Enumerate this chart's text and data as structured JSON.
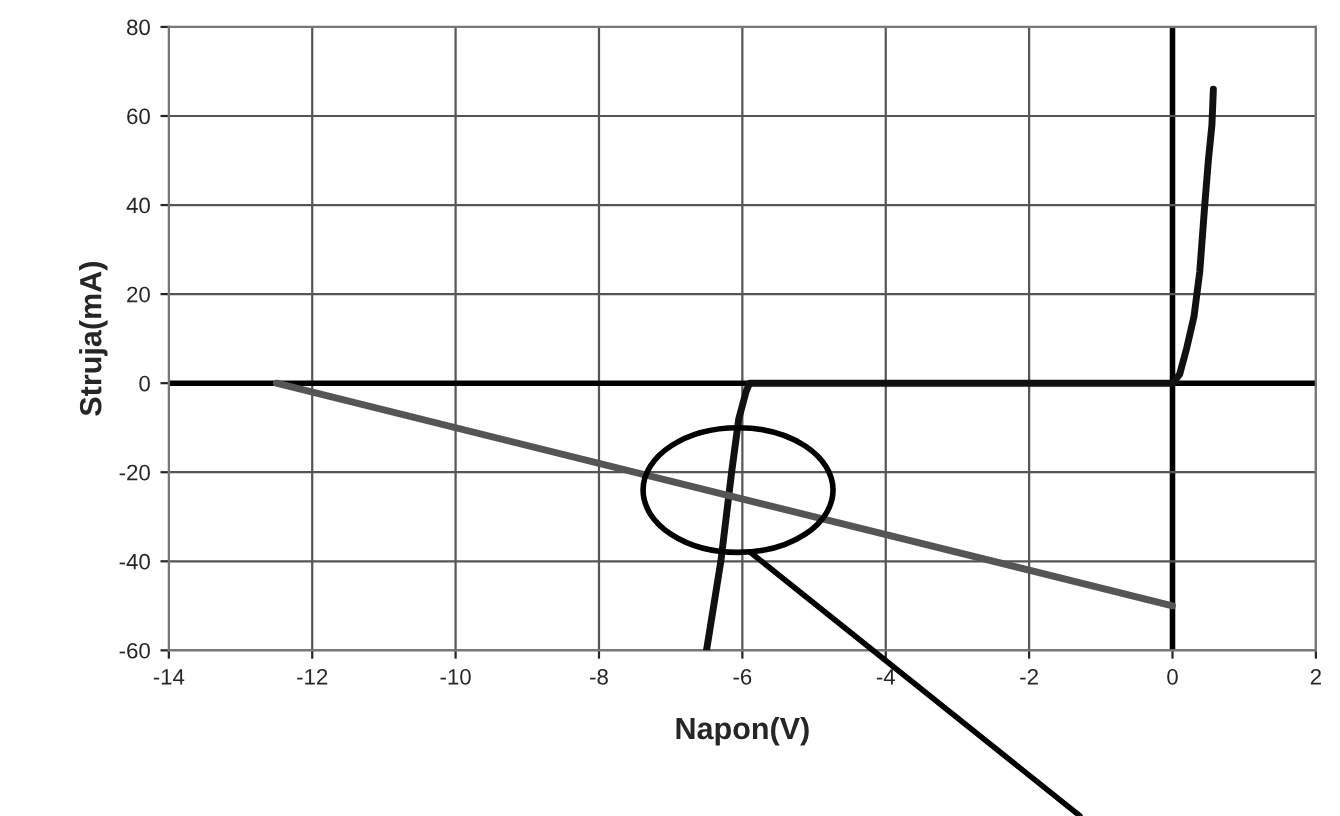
{
  "chart_data": {
    "type": "line",
    "xlabel": "Napon(V)",
    "ylabel": "Struja(mA)",
    "xlim": [
      -14,
      2
    ],
    "ylim": [
      -60,
      80
    ],
    "xticks": [
      -14,
      -12,
      -10,
      -8,
      -6,
      -4,
      -2,
      0,
      2
    ],
    "yticks": [
      -60,
      -40,
      -20,
      0,
      20,
      40,
      60,
      80
    ],
    "grid": true,
    "marker": "none",
    "line_style": "solid",
    "series": [
      {
        "color": "#111111",
        "x": [
          -6.5,
          -6.3,
          -6.15,
          -6.05,
          -5.95,
          -5.9,
          0,
          0.1,
          0.2,
          0.3,
          0.38,
          0.45,
          0.5,
          0.55,
          0.57
        ],
        "values": [
          -60,
          -40,
          -20,
          -8,
          -2,
          0,
          0,
          2,
          8,
          15,
          25,
          40,
          50,
          58,
          66
        ]
      },
      {
        "color": "#555555",
        "x": [
          -12.5,
          0
        ],
        "values": [
          0,
          -50
        ]
      }
    ]
  }
}
